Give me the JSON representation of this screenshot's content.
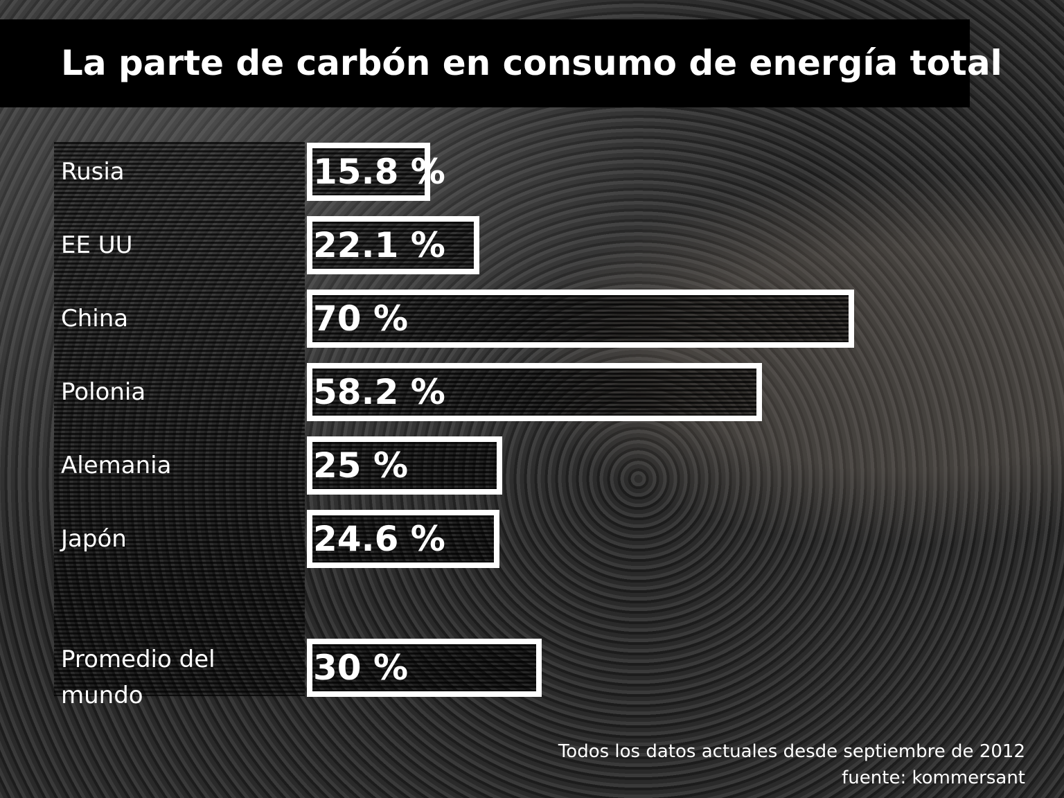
{
  "chart_data": {
    "type": "bar",
    "orientation": "horizontal",
    "title": "La parte de carbón en consumo de energía total",
    "categories": [
      "Rusia",
      "EE UU",
      "China",
      "Polonia",
      "Alemania",
      "Japón",
      "Promedio del mundo"
    ],
    "values": [
      15.8,
      22.1,
      70,
      58.2,
      25,
      24.6,
      30
    ],
    "value_labels": [
      "15.8 %",
      "22.1 %",
      "70 %",
      "58.2 %",
      "25 %",
      "24.6 %",
      "30 %"
    ],
    "color": "#ffffff",
    "notes": [
      "Todos los datos actuales desde septiembre de 2012",
      "fuente: kommersant"
    ]
  }
}
